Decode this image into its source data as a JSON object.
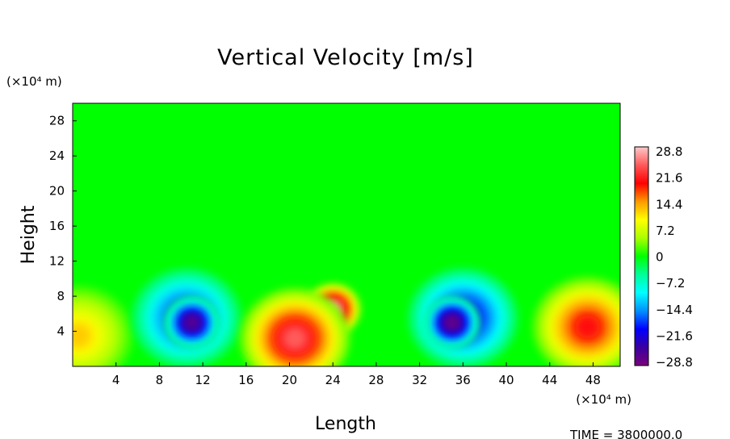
{
  "chart_data": {
    "type": "heatmap",
    "title": "Vertical Velocity [m/s]",
    "xlabel": "Length",
    "ylabel": "Height",
    "x_unit": "(×10⁴ m)",
    "y_unit": "(×10⁴ m)",
    "xlim": [
      0,
      50.5
    ],
    "ylim": [
      0,
      30
    ],
    "xticks": [
      "4",
      "8",
      "12",
      "16",
      "20",
      "24",
      "28",
      "32",
      "36",
      "40",
      "44",
      "48"
    ],
    "yticks": [
      "4",
      "8",
      "12",
      "16",
      "20",
      "24",
      "28"
    ],
    "colorbar": {
      "min": -28.8,
      "max": 28.8,
      "labels": [
        "28.8",
        "21.6",
        "14.4",
        "7.2",
        "0",
        "−7.2",
        "−14.4",
        "−21.6",
        "−28.8"
      ],
      "colors": [
        "#7a007a",
        "#3a00a0",
        "#0000ff",
        "#0090ff",
        "#00ffff",
        "#00ff99",
        "#00ff00",
        "#aaff00",
        "#ffff00",
        "#ff9900",
        "#ff0000",
        "#ff5a5a",
        "#ffc8c8"
      ]
    },
    "features": [
      {
        "label": "updraft",
        "x": 0.5,
        "y": 3.5,
        "w": 12
      },
      {
        "label": "downdraft",
        "x": 10.5,
        "y": 5.5,
        "w": -20
      },
      {
        "label": "downdraft core",
        "x": 11,
        "y": 5,
        "w": -26
      },
      {
        "label": "updraft core",
        "x": 24,
        "y": 6.5,
        "w": 27
      },
      {
        "label": "updraft cell",
        "x": 20.5,
        "y": 3.2,
        "w": 24
      },
      {
        "label": "downdraft",
        "x": 36,
        "y": 5.5,
        "w": -22
      },
      {
        "label": "downdraft core",
        "x": 35,
        "y": 5,
        "w": -27
      },
      {
        "label": "updraft",
        "x": 47.5,
        "y": 4.5,
        "w": 20
      }
    ]
  },
  "footer": {
    "time_label": "TIME = 3800000.0"
  }
}
